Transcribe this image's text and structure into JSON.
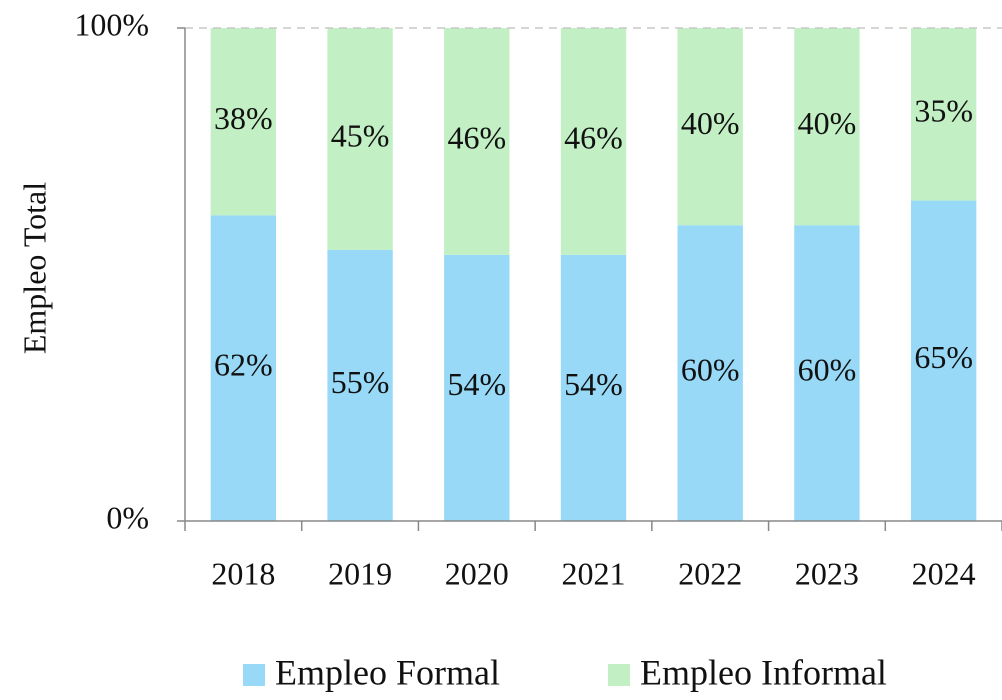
{
  "chart_data": {
    "type": "stacked_bar_100",
    "y_label": "Empleo Total",
    "categories": [
      "2018",
      "2019",
      "2020",
      "2021",
      "2022",
      "2023",
      "2024"
    ],
    "series": [
      {
        "name": "Empleo Formal",
        "color": "#97d9f7",
        "values": [
          62,
          55,
          54,
          54,
          60,
          60,
          65
        ],
        "value_labels": [
          "62%",
          "55%",
          "54%",
          "54%",
          "60%",
          "60%",
          "65%"
        ]
      },
      {
        "name": "Empleo Informal",
        "color": "#c2f0c4",
        "values": [
          38,
          45,
          46,
          46,
          40,
          40,
          35
        ],
        "value_labels": [
          "38%",
          "45%",
          "46%",
          "46%",
          "40%",
          "40%",
          "35%"
        ]
      }
    ],
    "ylim": [
      0,
      100
    ],
    "yticks": [
      {
        "value": 0,
        "label": "0%"
      },
      {
        "value": 100,
        "label": "100%"
      }
    ],
    "grid": true,
    "legend": "bottom"
  }
}
